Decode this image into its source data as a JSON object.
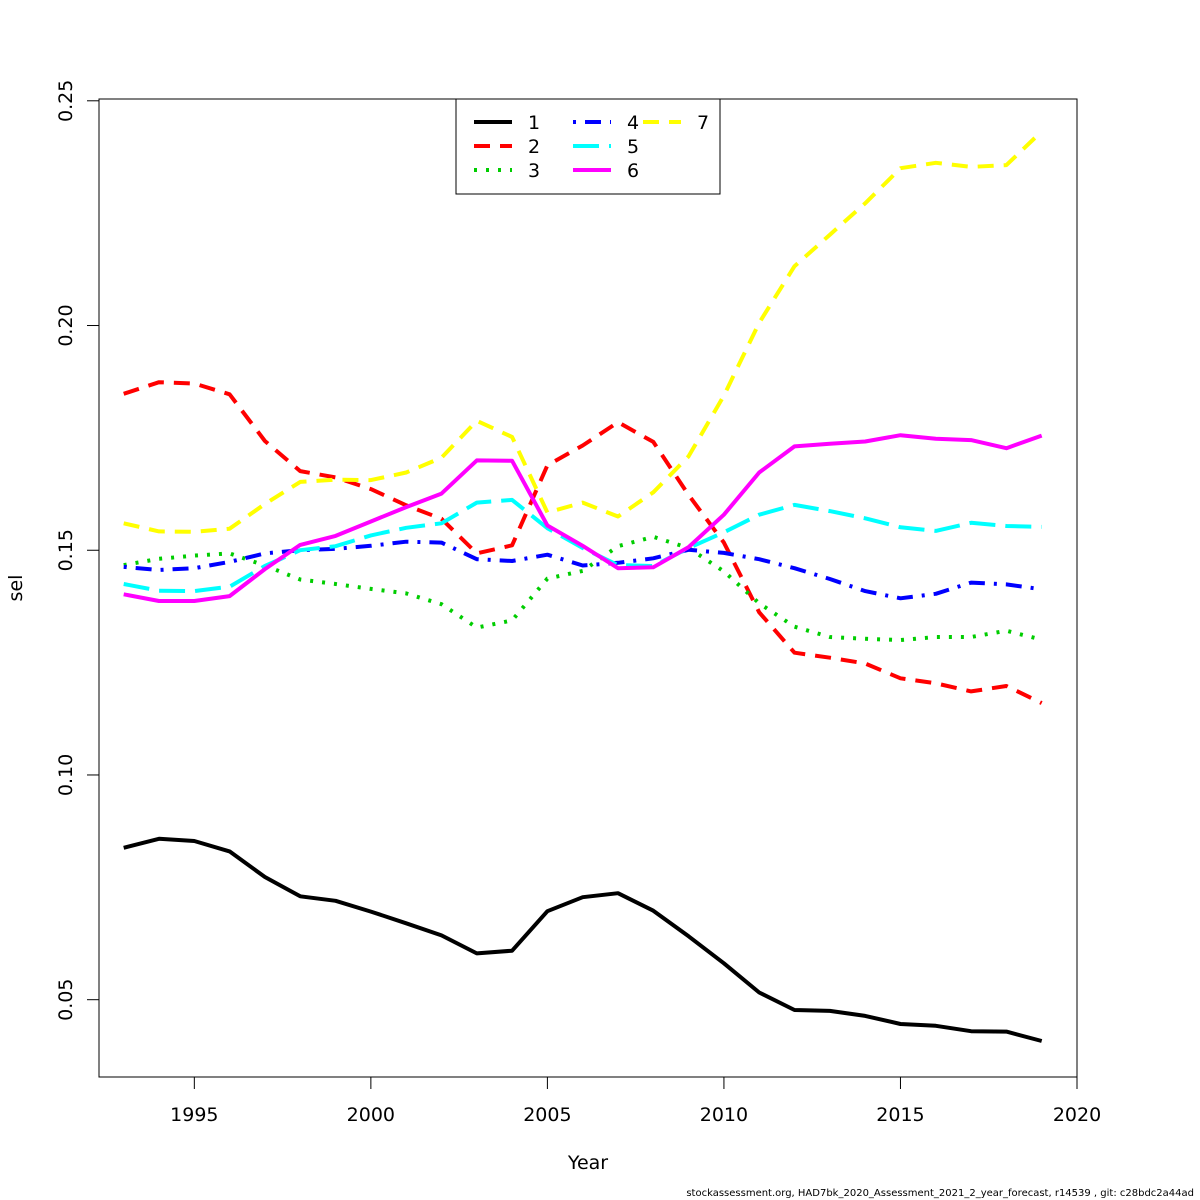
{
  "footer": "stockassessment.org, HAD7bk_2020_Assessment_2021_2_year_forecast, r14539 , git: c28bdc2a44ad",
  "chart_data": {
    "type": "line",
    "title": "",
    "xlabel": "Year",
    "ylabel": "sel",
    "xlim": [
      1992.3,
      2020
    ],
    "ylim": [
      0.0328,
      0.2504
    ],
    "xticks": [
      1995,
      2000,
      2005,
      2010,
      2015,
      2020
    ],
    "yticks": [
      0.05,
      0.1,
      0.15,
      0.2,
      0.25
    ],
    "ytick_labels": [
      "0.05",
      "0.10",
      "0.15",
      "0.20",
      "0.25"
    ],
    "grid": false,
    "legend_position": "top-center",
    "x": [
      1993,
      1994,
      1995,
      1996,
      1997,
      1998,
      1999,
      2000,
      2001,
      2002,
      2003,
      2004,
      2005,
      2006,
      2007,
      2008,
      2009,
      2010,
      2011,
      2012,
      2013,
      2014,
      2015,
      2016,
      2017,
      2018,
      2019
    ],
    "series": [
      {
        "name": "1",
        "color": "#000000",
        "dash": "solid",
        "values": [
          0.0838,
          0.0858,
          0.0853,
          0.083,
          0.0773,
          0.073,
          0.072,
          0.0696,
          0.067,
          0.0643,
          0.0603,
          0.0609,
          0.0697,
          0.0728,
          0.0737,
          0.0698,
          0.0641,
          0.0581,
          0.0516,
          0.0477,
          0.0475,
          0.0464,
          0.0446,
          0.0442,
          0.043,
          0.0429,
          0.0408
        ]
      },
      {
        "name": "2",
        "color": "#ff0000",
        "dash": "dashed",
        "values": [
          0.1848,
          0.1874,
          0.1871,
          0.1847,
          0.1743,
          0.1676,
          0.1662,
          0.1636,
          0.16,
          0.157,
          0.1493,
          0.1511,
          0.1689,
          0.1733,
          0.1785,
          0.1741,
          0.1623,
          0.1517,
          0.1362,
          0.1272,
          0.1261,
          0.1248,
          0.1215,
          0.1204,
          0.1186,
          0.1198,
          0.116
        ]
      },
      {
        "name": "3",
        "color": "#00cd00",
        "dash": "dotted",
        "values": [
          0.1467,
          0.1481,
          0.1488,
          0.1493,
          0.1466,
          0.1435,
          0.1425,
          0.1414,
          0.1404,
          0.138,
          0.1328,
          0.1344,
          0.1437,
          0.1454,
          0.1509,
          0.153,
          0.1505,
          0.1453,
          0.1382,
          0.133,
          0.1307,
          0.1303,
          0.13,
          0.1307,
          0.1307,
          0.1321,
          0.1301
        ]
      },
      {
        "name": "4",
        "color": "#0000ff",
        "dash": "dotdash",
        "values": [
          0.1463,
          0.1456,
          0.146,
          0.1474,
          0.1493,
          0.15,
          0.1503,
          0.151,
          0.1519,
          0.1517,
          0.148,
          0.1476,
          0.149,
          0.1466,
          0.1472,
          0.1482,
          0.1501,
          0.1494,
          0.148,
          0.146,
          0.1436,
          0.1409,
          0.1393,
          0.1403,
          0.1428,
          0.1424,
          0.1413
        ]
      },
      {
        "name": "5",
        "color": "#00ffff",
        "dash": "longdash",
        "values": [
          0.1425,
          0.141,
          0.1409,
          0.1419,
          0.1465,
          0.15,
          0.1509,
          0.1533,
          0.155,
          0.156,
          0.1606,
          0.1612,
          0.1549,
          0.1505,
          0.1467,
          0.1465,
          0.1505,
          0.154,
          0.1579,
          0.1601,
          0.1587,
          0.1571,
          0.1551,
          0.1543,
          0.1561,
          0.1554,
          0.1552
        ]
      },
      {
        "name": "6",
        "color": "#ff00ff",
        "dash": "solid",
        "values": [
          0.1402,
          0.1387,
          0.1387,
          0.1398,
          0.1458,
          0.1512,
          0.1532,
          0.1564,
          0.1596,
          0.1626,
          0.17,
          0.1699,
          0.1555,
          0.151,
          0.146,
          0.1462,
          0.1507,
          0.1579,
          0.1673,
          0.1731,
          0.1737,
          0.1742,
          0.1756,
          0.1748,
          0.1745,
          0.1727,
          0.1755
        ]
      },
      {
        "name": "7",
        "color": "#ffff00",
        "dash": "dashed",
        "values": [
          0.156,
          0.1542,
          0.1541,
          0.1548,
          0.1603,
          0.1652,
          0.1657,
          0.1656,
          0.1673,
          0.1706,
          0.1788,
          0.1752,
          0.1584,
          0.1606,
          0.1575,
          0.1629,
          0.1709,
          0.1844,
          0.2006,
          0.2132,
          0.2202,
          0.2272,
          0.235,
          0.2362,
          0.2353,
          0.2357,
          0.2432
        ]
      }
    ]
  }
}
